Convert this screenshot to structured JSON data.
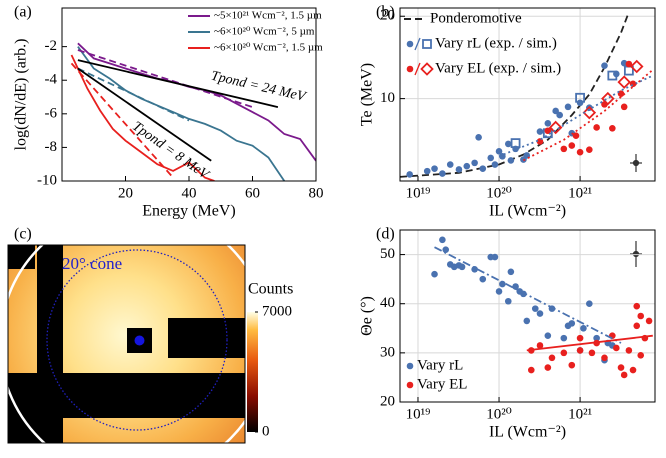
{
  "chart_data": [
    {
      "type": "line",
      "panel": "(a)",
      "xlabel": "Energy (MeV)",
      "ylabel": "log(dN/dE) (arb.)",
      "xlim": [
        0,
        80
      ],
      "ylim": [
        -10,
        0.3
      ],
      "xticks": [
        20,
        40,
        60,
        80
      ],
      "yticks": [
        -2,
        -4,
        -6,
        -8,
        -10
      ],
      "grid": false,
      "legend": "upper right",
      "annotations": [
        "Tpond = 24 MeV",
        "Tpond = 8 MeV"
      ],
      "series": [
        {
          "name": "~5×10²¹ Wcm⁻², 1.5 µm",
          "color": "#7b1a8c",
          "linestyle": "solid",
          "x": [
            5,
            10,
            15,
            20,
            25,
            30,
            35,
            40,
            45,
            50,
            55,
            60,
            65,
            70,
            75,
            80
          ],
          "values": [
            -1.8,
            -2.7,
            -3.0,
            -3.3,
            -3.6,
            -3.9,
            -4.1,
            -4.4,
            -4.6,
            -4.9,
            -5.4,
            -5.9,
            -6.4,
            -7.2,
            -7.5,
            -8.8
          ]
        },
        {
          "name": "~6×10²⁰ Wcm⁻², 5 µm",
          "color": "#3a7590",
          "linestyle": "solid",
          "x": [
            5,
            10,
            15,
            20,
            25,
            30,
            35,
            40,
            45,
            50,
            55,
            60,
            65,
            70
          ],
          "values": [
            -2.0,
            -3.3,
            -3.9,
            -4.6,
            -5.1,
            -5.5,
            -5.9,
            -6.3,
            -6.6,
            -7.0,
            -7.6,
            -7.9,
            -8.6,
            -10
          ]
        },
        {
          "name": "~6×10²⁰ Wcm⁻², 1.5 µm",
          "color": "#e8201e",
          "linestyle": "solid",
          "x": [
            3,
            8,
            12,
            16,
            20,
            25,
            30,
            35,
            40,
            45,
            48
          ],
          "values": [
            -2.5,
            -4.5,
            -5.8,
            -6.9,
            -7.6,
            -8.3,
            -9.0,
            -9.4,
            -8.9,
            -9.8,
            -10
          ]
        },
        {
          "color": "#7b1a8c",
          "linestyle": "dashed",
          "x": [
            5,
            60
          ],
          "values": [
            -2.2,
            -5.6
          ]
        },
        {
          "color": "#3a7590",
          "linestyle": "dashed",
          "x": [
            5,
            40
          ],
          "values": [
            -3.3,
            -6.4
          ]
        },
        {
          "color": "#e8201e",
          "linestyle": "dashed",
          "x": [
            3,
            35
          ],
          "values": [
            -3.0,
            -9.8
          ]
        },
        {
          "color": "#000000",
          "linestyle": "solid",
          "x": [
            5,
            68
          ],
          "values": [
            -2.8,
            -5.6
          ]
        },
        {
          "color": "#000000",
          "linestyle": "solid",
          "x": [
            5,
            47
          ],
          "values": [
            -3.3,
            -8.8
          ]
        }
      ]
    },
    {
      "type": "scatter",
      "panel": "(b)",
      "xlabel": "IL (Wcm⁻²)",
      "ylabel": "Te (MeV)",
      "xscale": "log",
      "xlim": [
        6e+18,
        8.4e+21
      ],
      "ylim": [
        0,
        21
      ],
      "xticks": [
        {
          "value": 1e+19,
          "label": "10¹⁹"
        },
        {
          "value": 1e+20,
          "label": "10²⁰"
        },
        {
          "value": 1e+21,
          "label": "10²¹"
        }
      ],
      "yticks": [
        10,
        20
      ],
      "grid": true,
      "legend": "upper left",
      "series": [
        {
          "name": "Ponderomotive",
          "color": "#222222",
          "linestyle": "dashed",
          "x": [
            6e+18,
            3.2e+19,
            1e+20,
            2e+20,
            4e+20,
            7.9e+20,
            1.3e+21,
            2e+21,
            3.2e+21,
            4e+21
          ],
          "values": [
            0.5,
            1.0,
            2.0,
            3.2,
            5.0,
            8.0,
            10.5,
            13.8,
            18,
            20.5
          ]
        },
        {
          "name": "Vary rL (exp. / sim.)",
          "color": "#4a72b0",
          "marker": "circle",
          "x": [
            7.9e+18,
            1.3e+19,
            1.6e+19,
            2e+19,
            2.5e+19,
            3.2e+19,
            4e+19,
            5e+19,
            5.6e+19,
            6.3e+19,
            7.9e+19,
            8.9e+19,
            1e+20,
            1.1e+20,
            1.3e+20,
            1.4e+20,
            1.6e+20,
            2e+20,
            2.2e+20,
            3.2e+20,
            4e+20,
            5e+20,
            5.6e+20,
            7.1e+20,
            7.9e+20,
            1e+21,
            1.3e+21,
            2e+21,
            2.8e+21,
            3.5e+21
          ],
          "values": [
            0.8,
            1.2,
            1.5,
            0.9,
            2.0,
            1.4,
            1.8,
            2.2,
            5.3,
            1.5,
            2.8,
            2.0,
            3.6,
            3.0,
            4.5,
            2.5,
            3.9,
            2.6,
            3.1,
            6.0,
            7.0,
            8.5,
            8.0,
            9.0,
            5.8,
            9.5,
            8.9,
            14,
            13,
            14.3
          ]
        },
        {
          "color": "#4a72b0",
          "marker": "square",
          "x": [
            1.6e+20,
            4e+20,
            1e+21,
            2.5e+21,
            4e+21
          ],
          "values": [
            4.6,
            5.8,
            10.1,
            12.8,
            13.4
          ]
        },
        {
          "name": "Vary EL (exp. / sim.)",
          "color": "#e8201e",
          "marker": "circle",
          "x": [
            3.2e+20,
            4e+20,
            6.3e+20,
            7.9e+20,
            8.9e+20,
            1e+21,
            1.3e+21,
            1.6e+21,
            2e+21,
            2.5e+21,
            3.2e+21,
            3.5e+21,
            4e+21,
            4.5e+21
          ],
          "values": [
            4.8,
            6.1,
            3.9,
            4.3,
            5.5,
            3.5,
            3.8,
            6.5,
            9.3,
            6.4,
            10.6,
            9.0,
            14.2,
            11.8
          ]
        },
        {
          "color": "#e8201e",
          "marker": "diamond",
          "x": [
            5e+20,
            1.3e+21,
            2.2e+21,
            3.5e+21,
            5e+21
          ],
          "values": [
            6.5,
            8.3,
            10.0,
            12.0,
            13.9
          ]
        },
        {
          "color": "#4a72b0",
          "linestyle": "dotted",
          "x": [
            1e+20,
            3.2e+20,
            1e+21,
            3.2e+21,
            7.9e+21
          ],
          "values": [
            3,
            5,
            8,
            11,
            12.8
          ]
        },
        {
          "color": "#e8201e",
          "linestyle": "dotted",
          "x": [
            2e+20,
            6.3e+20,
            2e+21,
            7.9e+21
          ],
          "values": [
            2.5,
            5,
            8.5,
            13.5
          ]
        }
      ]
    },
    {
      "type": "image",
      "panel": "(c)",
      "annotation": "20° cone",
      "colorbar_label": "Counts",
      "clim": [
        0,
        7000
      ],
      "cticks": [
        0,
        7000
      ]
    },
    {
      "type": "scatter",
      "panel": "(d)",
      "xlabel": "IL (Wcm⁻²)",
      "ylabel": "Θe (°)",
      "xscale": "log",
      "xlim": [
        6e+18,
        8.4e+21
      ],
      "ylim": [
        20,
        55
      ],
      "xticks": [
        {
          "value": 1e+19,
          "label": "10¹⁹"
        },
        {
          "value": 1e+20,
          "label": "10²⁰"
        },
        {
          "value": 1e+21,
          "label": "10²¹"
        }
      ],
      "yticks": [
        20,
        30,
        40,
        50
      ],
      "grid": true,
      "legend": "lower left",
      "series": [
        {
          "name": "Vary rL",
          "color": "#4a72b0",
          "marker": "circle",
          "x": [
            1.6e+19,
            2e+19,
            2.2e+19,
            2.5e+19,
            2.8e+19,
            3.2e+19,
            3.5e+19,
            5e+19,
            6.3e+19,
            7.9e+19,
            8.9e+19,
            1e+20,
            1.1e+20,
            1.3e+20,
            1.4e+20,
            1.6e+20,
            1.8e+20,
            2e+20,
            2.2e+20,
            2.8e+20,
            3.2e+20,
            4e+20,
            4.5e+20,
            6.3e+20,
            7.1e+20,
            7.9e+20,
            1e+21,
            1.1e+21,
            1.3e+21,
            1.6e+21,
            2e+21,
            2.2e+21,
            2.5e+21
          ],
          "values": [
            46,
            53,
            51,
            48,
            47.5,
            47.8,
            47.5,
            47,
            45,
            49.5,
            49.5,
            42.5,
            44,
            40.5,
            46.5,
            43.5,
            42.5,
            42,
            36.5,
            39,
            38,
            33.5,
            39,
            33,
            35.5,
            36,
            30.5,
            35,
            40,
            33,
            28.5,
            32,
            31.5
          ]
        },
        {
          "name": "Vary EL",
          "color": "#e8201e",
          "marker": "circle",
          "x": [
            2.5e+20,
            2.5e+20,
            3.2e+20,
            4e+20,
            4.5e+20,
            6.3e+20,
            7.9e+20,
            1e+21,
            1e+21,
            1.4e+21,
            1.6e+21,
            2e+21,
            2.5e+21,
            2.8e+21,
            3.2e+21,
            3.5e+21,
            4e+21,
            4.5e+21,
            5e+21,
            5e+21,
            5.6e+21,
            7.1e+21,
            6.3e+21,
            5.6e+21
          ],
          "values": [
            26.5,
            30.5,
            31.5,
            27,
            29,
            30,
            27.5,
            30.5,
            33,
            30,
            32,
            29,
            33.5,
            31,
            27,
            25.5,
            30.5,
            26.5,
            35.5,
            39.5,
            37.5,
            36.5,
            33,
            29.5
          ]
        },
        {
          "color": "#4a72b0",
          "linestyle": "dashdot",
          "x": [
            1.6e+19,
            3.2e+21
          ],
          "values": [
            51.5,
            32
          ]
        },
        {
          "color": "#e8201e",
          "linestyle": "solid",
          "x": [
            2.2e+20,
            7.9e+21
          ],
          "values": [
            30.5,
            33.5
          ]
        }
      ]
    }
  ]
}
